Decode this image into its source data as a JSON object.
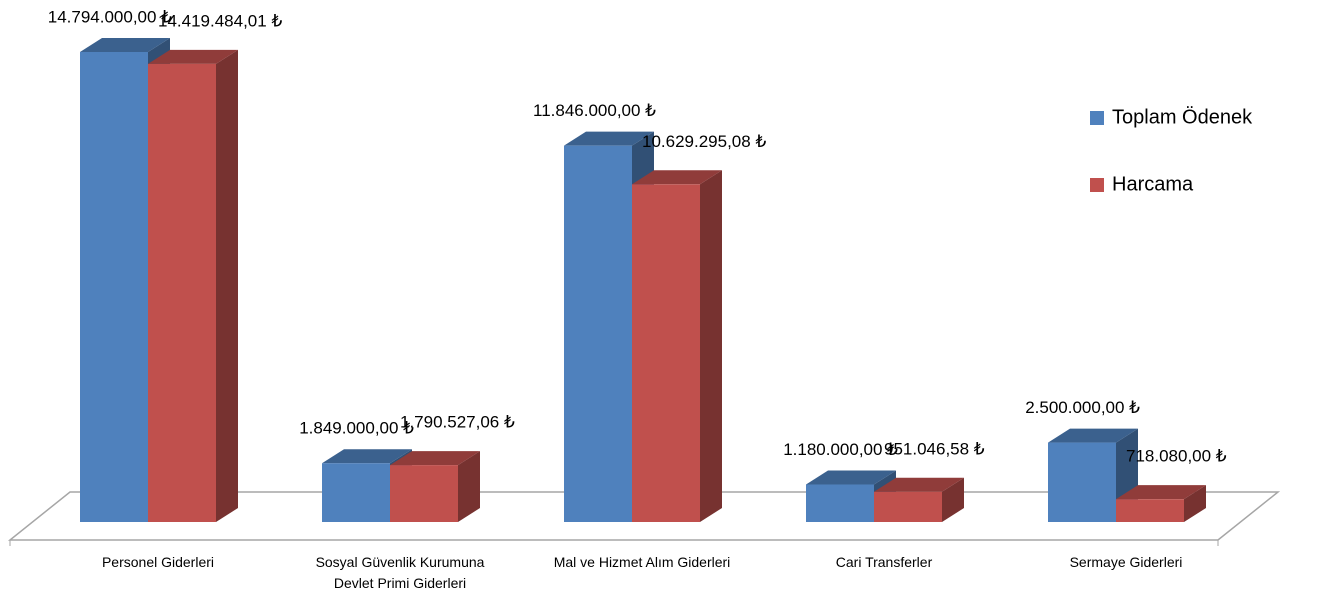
{
  "chart_data": {
    "type": "bar3d",
    "categories": [
      "Personel Giderleri",
      "Sosyal Güvenlik Kurumuna Devlet Primi Giderleri",
      "Mal ve Hizmet Alım Giderleri",
      "Cari Transferler",
      "Sermaye Giderleri"
    ],
    "series": [
      {
        "name": "Toplam Ödenek",
        "color": "#4f81bd",
        "values": [
          14794000,
          1849000,
          11846000,
          1180000,
          2500000
        ],
        "value_labels": [
          "14.794.000,00 ₺",
          "1.849.000,00 ₺",
          "11.846.000,00 ₺",
          "1.180.000,00 ₺",
          "2.500.000,00 ₺"
        ]
      },
      {
        "name": "Harcama",
        "color": "#c0504d",
        "values": [
          14419484.01,
          1790527.06,
          10629295.08,
          951046.58,
          718080
        ],
        "value_labels": [
          "14.419.484,01 ₺",
          "1.790.527,06 ₺",
          "10.629.295,08 ₺",
          "951.046,58 ₺",
          "718.080,00 ₺"
        ]
      }
    ],
    "legend": "right"
  }
}
